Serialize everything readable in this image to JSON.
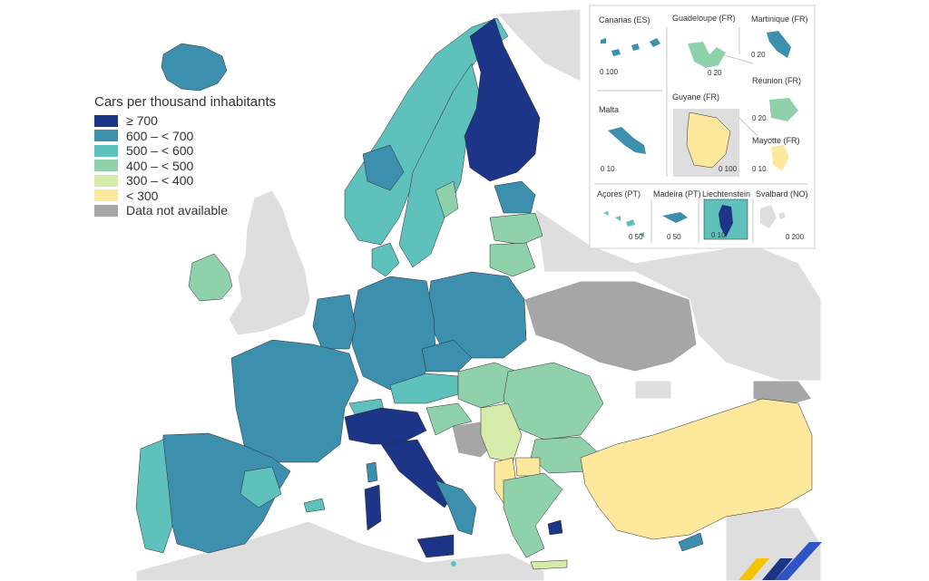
{
  "legend": {
    "title": "Cars per thousand inhabitants",
    "items": [
      {
        "label": "≥ 700",
        "color": "#1d3586"
      },
      {
        "label": "600 – < 700",
        "color": "#3c8fad"
      },
      {
        "label": "500 – < 600",
        "color": "#5ec1bb"
      },
      {
        "label": "400 – < 500",
        "color": "#8fd1aa"
      },
      {
        "label": "300 – < 400",
        "color": "#d6eaaa"
      },
      {
        "label": "< 300",
        "color": "#fde89c"
      },
      {
        "label": "Data not available",
        "color": "#a6a6a6"
      }
    ]
  },
  "colors": {
    "non_eu_land": "#dedede",
    "border": "#2b2b2b",
    "inset_panel": "#ffffff",
    "inset_divider": "#c8c8c8"
  },
  "insets": [
    {
      "key": "canarias",
      "label": "Canarias (ES)",
      "scale": "0  100"
    },
    {
      "key": "guadeloupe",
      "label": "Guadeloupe (FR)",
      "scale": "0  20"
    },
    {
      "key": "martinique",
      "label": "Martinique (FR)",
      "scale": "0  20"
    },
    {
      "key": "reunion",
      "label": "Réunion (FR)",
      "scale": "0  20"
    },
    {
      "key": "malta",
      "label": "Malta",
      "scale": "0  10"
    },
    {
      "key": "guyane",
      "label": "Guyane (FR)",
      "scale": "0  100"
    },
    {
      "key": "mayotte",
      "label": "Mayotte (FR)",
      "scale": "0 10"
    },
    {
      "key": "acores",
      "label": "Açores (PT)",
      "scale": "0  50"
    },
    {
      "key": "madeira",
      "label": "Madeira (PT)",
      "scale": "0   50"
    },
    {
      "key": "liechtenstein",
      "label": "Liechtenstein",
      "scale": "0  10"
    },
    {
      "key": "svalbard",
      "label": "Svalbard (NO)",
      "scale": "0   200"
    }
  ]
}
